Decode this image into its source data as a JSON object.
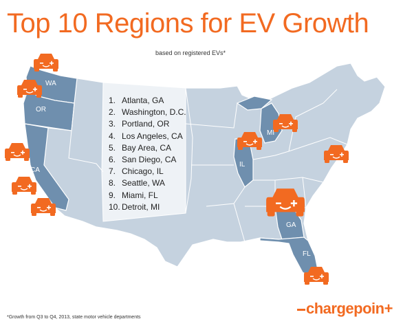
{
  "title": "Top 10 Regions for EV Growth",
  "subtitle": "based on registered EVs*",
  "ranking": [
    {
      "rank": "1.",
      "name": "Atlanta, GA"
    },
    {
      "rank": "2.",
      "name": "Washington, D.C."
    },
    {
      "rank": "3.",
      "name": "Portland, OR"
    },
    {
      "rank": "4.",
      "name": "Los Angeles, CA"
    },
    {
      "rank": "5.",
      "name": "Bay Area, CA"
    },
    {
      "rank": "6.",
      "name": "San Diego, CA"
    },
    {
      "rank": "7.",
      "name": "Chicago, IL"
    },
    {
      "rank": "8.",
      "name": "Seattle, WA"
    },
    {
      "rank": "9.",
      "name": "Miami, FL"
    },
    {
      "rank": "10.",
      "name": "Detroit, MI"
    }
  ],
  "state_labels": {
    "wa": "WA",
    "or": "OR",
    "ca": "CA",
    "il": "IL",
    "mi": "MI",
    "ga": "GA",
    "fl": "FL"
  },
  "footnote": "*Growth from Q3 to Q4, 2013, state motor vehicle departments",
  "logo": {
    "text": "chargepoin",
    "plus": "+"
  },
  "colors": {
    "accent": "#f26a21",
    "state_base": "#c5d2df",
    "state_highlight": "#6f8fae",
    "border": "#ffffff",
    "panel": "#eef2f6"
  },
  "icons": {
    "marker": "ev-car-icon"
  }
}
